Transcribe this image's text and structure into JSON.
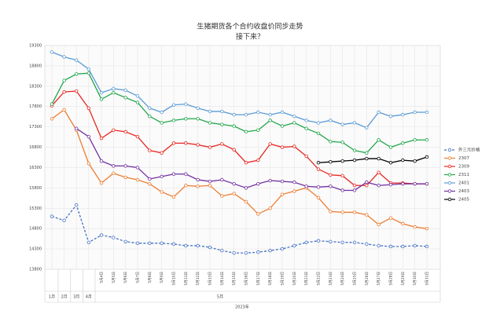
{
  "chart_data": {
    "type": "line",
    "title": "生猪期货各个合约收盘价同步走势",
    "subtitle": "接下来？",
    "categories": [
      "1月",
      "2月",
      "3月",
      "4月",
      "5月4日",
      "5月5日",
      "5月6日",
      "5月7日",
      "5月8日",
      "5月9日",
      "5月10日",
      "5月11日",
      "5月12日",
      "5月13日",
      "5月14日",
      "5月15日",
      "5月16日",
      "5月17日",
      "5月18日",
      "5月19日",
      "5月20日",
      "5月21日",
      "5月22日",
      "5月23日",
      "5月24日",
      "5月25日",
      "5月26日",
      "5月27日",
      "5月28日",
      "5月29日",
      "5月30日",
      "5月31日"
    ],
    "x_group_label": "5月",
    "x_year_label": "2023年",
    "ylim": [
      13800,
      19300
    ],
    "yticks": [
      13800,
      14300,
      14800,
      15300,
      15800,
      16300,
      16800,
      17300,
      17800,
      18300,
      18800,
      19300
    ],
    "grid": true,
    "legend": "right",
    "series": [
      {
        "name": "外三元价格",
        "color": "#4472c4",
        "dashed": true,
        "values": [
          15100,
          15000,
          15380,
          14460,
          14640,
          14580,
          14480,
          14440,
          14440,
          14440,
          14420,
          14380,
          14380,
          14340,
          14260,
          14200,
          14200,
          14220,
          14260,
          14300,
          14380,
          14460,
          14500,
          14480,
          14460,
          14460,
          14420,
          14380,
          14360,
          14360,
          14380,
          14360
        ]
      },
      {
        "name": "2307",
        "color": "#ed7d31",
        "values": [
          17500,
          17720,
          17220,
          16400,
          15920,
          16160,
          16060,
          16000,
          15900,
          15700,
          15580,
          15860,
          15840,
          15860,
          15600,
          15660,
          15460,
          15160,
          15300,
          15640,
          15720,
          15800,
          15560,
          15220,
          15200,
          15200,
          15140,
          14900,
          15060,
          14920,
          14840,
          14800
        ]
      },
      {
        "name": "2309",
        "color": "#e8251f",
        "values": [
          17820,
          18160,
          18180,
          17760,
          17020,
          17220,
          17180,
          17060,
          16720,
          16660,
          16900,
          16900,
          16860,
          16800,
          16880,
          16740,
          16420,
          16480,
          16880,
          16800,
          16820,
          16580,
          16260,
          16120,
          16100,
          15860,
          15860,
          16180,
          15920,
          15920,
          15900,
          15900
        ]
      },
      {
        "name": "2311",
        "color": "#21a64a",
        "values": [
          17860,
          18440,
          18600,
          18620,
          17980,
          18140,
          18020,
          17900,
          17560,
          17400,
          17460,
          17500,
          17500,
          17400,
          17360,
          17320,
          17180,
          17220,
          17460,
          17320,
          17400,
          17260,
          17140,
          16940,
          16920,
          16720,
          16660,
          16980,
          16800,
          16900,
          16980,
          16980
        ]
      },
      {
        "name": "2401",
        "color": "#5b9bd5",
        "values": [
          19140,
          19020,
          18940,
          18720,
          18140,
          18240,
          18200,
          18060,
          17760,
          17660,
          17840,
          17860,
          17760,
          17680,
          17680,
          17600,
          17600,
          17660,
          17600,
          17660,
          17560,
          17460,
          17400,
          17460,
          17360,
          17400,
          17280,
          17660,
          17560,
          17600,
          17660,
          17660
        ]
      },
      {
        "name": "2403",
        "color": "#7030a0",
        "values": [
          null,
          null,
          17260,
          17060,
          16460,
          16340,
          16340,
          16300,
          16020,
          16080,
          16140,
          16140,
          16000,
          15960,
          16000,
          15900,
          15800,
          15900,
          15980,
          15960,
          15940,
          15840,
          15820,
          15840,
          15740,
          15740,
          15940,
          15860,
          15880,
          15900,
          15900,
          15900
        ]
      },
      {
        "name": "2405",
        "color": "#000000",
        "values": [
          null,
          null,
          null,
          null,
          null,
          null,
          null,
          null,
          null,
          null,
          null,
          null,
          null,
          null,
          null,
          null,
          null,
          null,
          null,
          null,
          null,
          null,
          16420,
          16440,
          16460,
          16480,
          16520,
          16520,
          16420,
          16480,
          16460,
          16560
        ]
      }
    ]
  }
}
